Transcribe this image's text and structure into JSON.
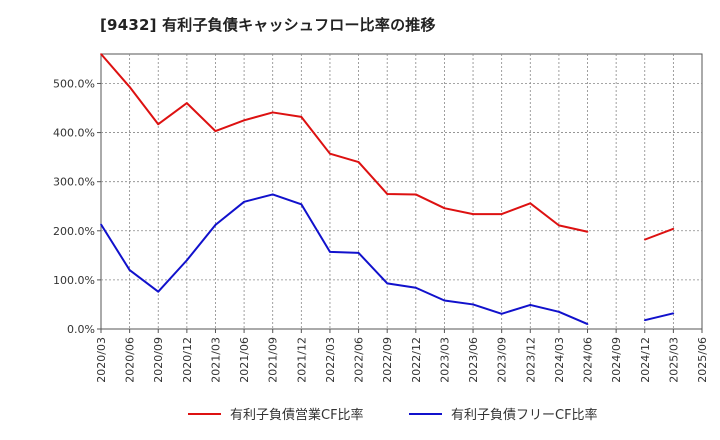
{
  "title": "[9432]  有利子負債キャッシュフロー比率の推移",
  "chart_data": {
    "type": "line",
    "title": "[9432]  有利子負債キャッシュフロー比率の推移",
    "x": [
      "2020/03",
      "2020/06",
      "2020/09",
      "2020/12",
      "2021/03",
      "2021/06",
      "2021/09",
      "2021/12",
      "2022/03",
      "2022/06",
      "2022/09",
      "2022/12",
      "2023/03",
      "2023/06",
      "2023/09",
      "2023/12",
      "2024/03",
      "2024/06",
      "2024/09",
      "2024/12",
      "2025/03",
      "2025/06"
    ],
    "ylim": [
      0,
      560
    ],
    "y_ticks": [
      0,
      100,
      200,
      300,
      400,
      500
    ],
    "y_tick_labels": [
      "0.0%",
      "100.0%",
      "200.0%",
      "300.0%",
      "400.0%",
      "500.0%"
    ],
    "grid": true,
    "legend_position": "bottom",
    "series": [
      {
        "name": "有利子負債営業CF比率",
        "color": "#dd1111",
        "values": [
          560,
          493,
          417,
          460,
          403,
          425,
          441,
          432,
          357,
          340,
          275,
          274,
          246,
          234,
          234,
          256,
          211,
          198,
          null,
          182,
          204,
          null
        ]
      },
      {
        "name": "有利子負債フリーCF比率",
        "color": "#1111cc",
        "values": [
          213,
          120,
          76,
          140,
          212,
          259,
          274,
          254,
          157,
          155,
          93,
          84,
          58,
          50,
          31,
          49,
          35,
          10,
          null,
          18,
          32,
          null
        ]
      }
    ]
  }
}
